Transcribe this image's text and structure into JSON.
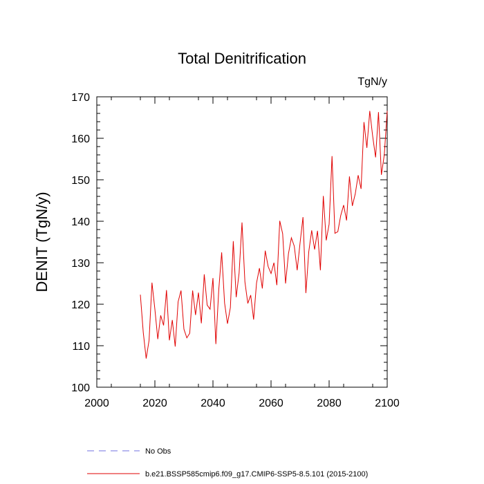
{
  "chart_data": {
    "type": "line",
    "title": "Total Denitrification",
    "units": "TgN/y",
    "ylabel": "DENIT  (TgN/y)",
    "xlabel": "",
    "xlim": [
      2000,
      2100
    ],
    "ylim": [
      100,
      170
    ],
    "x_ticks": [
      2000,
      2020,
      2040,
      2060,
      2080,
      2100
    ],
    "y_ticks": [
      100,
      110,
      120,
      130,
      140,
      150,
      160,
      170
    ],
    "grid": false,
    "legend_position": "bottom",
    "legend": [
      {
        "label": "No Obs",
        "color": "#7070e0",
        "style": "dashed"
      },
      {
        "label": "b.e21.BSSP585cmip6.f09_g17.CMIP6-SSP5-8.5.101 (2015-2100)",
        "color": "#e00000",
        "style": "solid"
      }
    ],
    "series": [
      {
        "name": "b.e21.BSSP585cmip6.f09_g17.CMIP6-SSP5-8.5.101 (2015-2100)",
        "color": "#e00000",
        "x": [
          2015,
          2016,
          2017,
          2018,
          2019,
          2020,
          2021,
          2022,
          2023,
          2024,
          2025,
          2026,
          2027,
          2028,
          2029,
          2030,
          2031,
          2032,
          2033,
          2034,
          2035,
          2036,
          2037,
          2038,
          2039,
          2040,
          2041,
          2042,
          2043,
          2044,
          2045,
          2046,
          2047,
          2048,
          2049,
          2050,
          2051,
          2052,
          2053,
          2054,
          2055,
          2056,
          2057,
          2058,
          2059,
          2060,
          2061,
          2062,
          2063,
          2064,
          2065,
          2066,
          2067,
          2068,
          2069,
          2070,
          2071,
          2072,
          2073,
          2074,
          2075,
          2076,
          2077,
          2078,
          2079,
          2080,
          2081,
          2082,
          2083,
          2084,
          2085,
          2086,
          2087,
          2088,
          2089,
          2090,
          2091,
          2092,
          2093,
          2094,
          2095,
          2096,
          2097,
          2098,
          2099,
          2100
        ],
        "values": [
          122.3,
          113.2,
          106.9,
          111.3,
          125.2,
          118.8,
          111.6,
          117.3,
          114.9,
          123.4,
          111.3,
          116.2,
          109.8,
          120.6,
          123.3,
          114.0,
          111.9,
          113.0,
          123.3,
          117.4,
          122.8,
          115.4,
          127.2,
          119.8,
          118.8,
          126.3,
          110.4,
          123.5,
          132.5,
          120.3,
          115.3,
          119.2,
          135.2,
          121.7,
          127.5,
          139.7,
          125.4,
          120.2,
          122.2,
          116.3,
          125.1,
          128.7,
          123.8,
          132.9,
          129.1,
          127.4,
          130.0,
          124.6,
          140.1,
          137.0,
          125.0,
          132.2,
          136.0,
          134.0,
          128.2,
          134.8,
          141.0,
          122.7,
          132.7,
          137.8,
          133.2,
          137.7,
          128.2,
          146.1,
          135.4,
          139.3,
          155.7,
          137.1,
          137.5,
          141.4,
          143.9,
          140.2,
          150.8,
          143.7,
          146.6,
          151.1,
          147.8,
          163.9,
          157.7,
          166.6,
          160.5,
          155.4,
          166.3,
          151.2,
          156.0,
          166.6
        ]
      }
    ]
  }
}
